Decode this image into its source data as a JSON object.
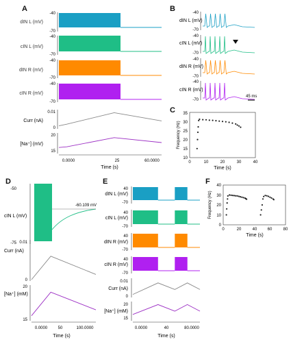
{
  "colors": {
    "dIN_L": "#1a9fc4",
    "cIN_L": "#1fbe86",
    "dIN_R": "#ff8a00",
    "cIN_R": "#b020f0",
    "curr": "#888888",
    "na": "#9c2fc4",
    "freq": "#222222",
    "axis": "#333333"
  },
  "panel_letters": [
    "A",
    "B",
    "C",
    "D",
    "E",
    "F"
  ],
  "chart_data": [
    {
      "panel": "A",
      "type": "line",
      "traces": [
        {
          "label": "dIN L (mV)",
          "ticks": [
            "-40",
            "-70"
          ],
          "color_key": "dIN_L",
          "burst_x": [
            0,
            35
          ]
        },
        {
          "label": "cIN L (mV)",
          "ticks": [
            "-40",
            "-70"
          ],
          "color_key": "cIN_L",
          "burst_x": [
            0,
            35
          ]
        },
        {
          "label": "dIN R (mV)",
          "ticks": [
            "-40",
            "-70"
          ],
          "color_key": "dIN_R",
          "burst_x": [
            0,
            35
          ]
        },
        {
          "label": "cIN R (mV)",
          "ticks": [
            "-40",
            "-70"
          ],
          "color_key": "cIN_R",
          "burst_x": [
            0,
            35
          ]
        }
      ],
      "curr": {
        "label": "Curr (nA)",
        "ticks": [
          "0.01",
          "0"
        ],
        "x": [
          0,
          5,
          35,
          65
        ],
        "y": [
          0.001,
          0.002,
          0.009,
          0.004
        ]
      },
      "na": {
        "label": "[Na⁺] (mV)",
        "ticks": [
          "20",
          "15"
        ],
        "x": [
          0,
          5,
          35,
          65
        ],
        "y": [
          16.0,
          16.2,
          19.0,
          17.5
        ]
      },
      "xticks": [
        "0.0000",
        "25",
        "60.0000"
      ],
      "xlabel": "Time (s)",
      "xlim": [
        0,
        65
      ]
    },
    {
      "panel": "B",
      "type": "line",
      "traces": [
        {
          "label": "dIN L (mV)",
          "ticks": [
            "-40",
            "-70"
          ],
          "color_key": "dIN_L"
        },
        {
          "label": "cIN L (mV)",
          "ticks": [
            "-40",
            "-70"
          ],
          "color_key": "cIN_L"
        },
        {
          "label": "dIN R (mV)",
          "ticks": [
            "-40",
            "-70"
          ],
          "color_key": "dIN_R"
        },
        {
          "label": "cIN R (mV)",
          "ticks": [
            "-40",
            "-70"
          ],
          "color_key": "cIN_R"
        }
      ],
      "scalebar": "45 ms"
    },
    {
      "panel": "C",
      "type": "scatter",
      "x": [
        4.5,
        4.8,
        5.0,
        5.2,
        5.5,
        6,
        8,
        10,
        12,
        14,
        16,
        18,
        20,
        22,
        24,
        26,
        28,
        29,
        30,
        31
      ],
      "y": [
        15,
        20,
        24,
        27,
        30.5,
        31.2,
        31.0,
        30.9,
        30.7,
        30.6,
        30.4,
        30.2,
        30.0,
        29.8,
        29.5,
        29.1,
        28.6,
        28.0,
        27.5,
        26.8
      ],
      "xticks": [
        "0",
        "10",
        "20",
        "30",
        "40"
      ],
      "yticks": [
        "10",
        "15",
        "20",
        "25",
        "30",
        "35"
      ],
      "xlim": [
        0,
        40
      ],
      "ylim": [
        10,
        35
      ],
      "xlabel": "Time (s)",
      "ylabel": "Frequency (Hz)"
    },
    {
      "panel": "D",
      "type": "line",
      "trace": {
        "label": "cIN L (mV)",
        "ticks": [
          "-50",
          "-75"
        ],
        "color_key": "cIN_L",
        "burst_x": [
          0,
          30
        ]
      },
      "annotation": "-60.109 mV",
      "curr": {
        "label": "Curr (nA)",
        "ticks": [
          "0.01",
          "0"
        ],
        "x": [
          0,
          30,
          100
        ],
        "y": [
          0.0,
          0.009,
          0.002
        ]
      },
      "na": {
        "label": "[Na⁺] (mM)",
        "ticks": [
          "20",
          "15"
        ],
        "x": [
          0,
          30,
          100
        ],
        "y": [
          15.5,
          19.5,
          16.5
        ]
      },
      "xticks": [
        "0.0000",
        "50",
        "100.0000"
      ],
      "xlabel": "Time (s)",
      "xlim": [
        0,
        100
      ]
    },
    {
      "panel": "E",
      "type": "line",
      "traces": [
        {
          "label": "dIN L (mV)",
          "ticks": [
            "40",
            "-70"
          ],
          "color_key": "dIN_L"
        },
        {
          "label": "cIN L (mV)",
          "ticks": [
            "40",
            "-70"
          ],
          "color_key": "cIN_L"
        },
        {
          "label": "dIN R (mV)",
          "ticks": [
            "40",
            "-70"
          ],
          "color_key": "dIN_R"
        },
        {
          "label": "cIN R (mV)",
          "ticks": [
            "40",
            "-70"
          ],
          "color_key": "cIN_R"
        }
      ],
      "bursts": [
        [
          0,
          30
        ],
        [
          50,
          65
        ]
      ],
      "curr": {
        "label": "Curr (nA)",
        "ticks": [
          "0.01",
          "0"
        ],
        "x": [
          0,
          30,
          50,
          65,
          80
        ],
        "y": [
          0.001,
          0.008,
          0.004,
          0.008,
          0.004
        ]
      },
      "na": {
        "label": "[Na⁺] (mM)",
        "ticks": [
          "20",
          "15"
        ],
        "x": [
          0,
          30,
          50,
          65,
          80
        ],
        "y": [
          16.5,
          19.5,
          17.5,
          19.5,
          17.5
        ]
      },
      "xticks": [
        "0.0000",
        "40",
        "80.0000"
      ],
      "xlabel": "Time (s)",
      "xlim": [
        0,
        80
      ]
    },
    {
      "panel": "F",
      "type": "scatter",
      "x": [
        4,
        4.5,
        5,
        5.5,
        6,
        8,
        10,
        12,
        14,
        16,
        18,
        20,
        22,
        24,
        26,
        28,
        29,
        30,
        48,
        49,
        50,
        51,
        52,
        54,
        56,
        58,
        60,
        62,
        64,
        65
      ],
      "y": [
        10,
        16,
        22,
        26,
        29,
        30,
        29.8,
        29.6,
        29.4,
        29.2,
        29.0,
        28.6,
        28.2,
        27.8,
        27.3,
        26.8,
        26.3,
        25.8,
        10,
        15,
        20,
        26,
        28.5,
        29.5,
        29.2,
        28.6,
        27.8,
        27.0,
        26.0,
        25.3
      ],
      "xticks": [
        "0",
        "20",
        "40",
        "60",
        "80"
      ],
      "yticks": [
        "0",
        "10",
        "20",
        "30",
        "40"
      ],
      "xlim": [
        0,
        80
      ],
      "ylim": [
        0,
        40
      ],
      "xlabel": "Time (s)",
      "ylabel": "Frequency (Hz)"
    }
  ]
}
